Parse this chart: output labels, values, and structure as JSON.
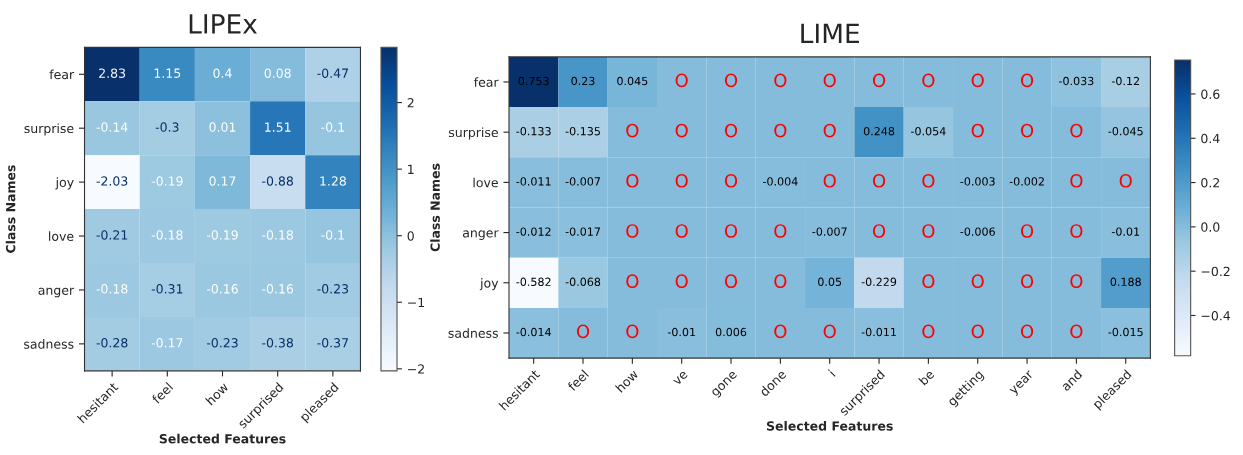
{
  "chart_data": [
    {
      "type": "heatmap",
      "title": "LIPEx",
      "xlabel": "Selected Features",
      "ylabel": "Class Names",
      "categories": [
        "hesitant",
        "feel",
        "how",
        "surprised",
        "pleased"
      ],
      "y_categories": [
        "fear",
        "surprise",
        "joy",
        "love",
        "anger",
        "sadness"
      ],
      "cells": [
        [
          2.83,
          1.15,
          0.4,
          0.08,
          -0.47
        ],
        [
          -0.14,
          -0.3,
          0.01,
          1.51,
          -0.1
        ],
        [
          -2.03,
          -0.19,
          0.17,
          -0.88,
          1.28
        ],
        [
          -0.21,
          -0.18,
          -0.19,
          -0.18,
          -0.1
        ],
        [
          -0.18,
          -0.31,
          -0.16,
          -0.16,
          -0.23
        ],
        [
          -0.28,
          -0.17,
          -0.23,
          -0.38,
          -0.37
        ]
      ],
      "data_labels": true,
      "clim": [
        -2.03,
        2.83
      ],
      "cticks": [
        {
          "value": -2,
          "label": "−2"
        },
        {
          "value": -1,
          "label": "−1"
        },
        {
          "value": 0,
          "label": "0"
        },
        {
          "value": 1,
          "label": "1"
        },
        {
          "value": 2,
          "label": "2"
        }
      ]
    },
    {
      "type": "heatmap",
      "title": "LIME",
      "xlabel": "Selected Features",
      "ylabel": "Class Names",
      "categories": [
        "hesitant",
        "feel",
        "how",
        "ve",
        "gone",
        "done",
        "i",
        "surprised",
        "be",
        "getting",
        "year",
        "and",
        "pleased"
      ],
      "y_categories": [
        "fear",
        "surprise",
        "love",
        "anger",
        "joy",
        "sadness"
      ],
      "cells": [
        [
          0.753,
          0.23,
          0.045,
          0,
          0,
          0,
          0,
          0,
          0,
          0,
          0,
          -0.033,
          -0.12
        ],
        [
          -0.133,
          -0.135,
          0,
          0,
          0,
          0,
          0,
          0.248,
          -0.054,
          0,
          0,
          0,
          -0.045
        ],
        [
          -0.011,
          -0.007,
          0,
          0,
          0,
          -0.004,
          0,
          0,
          0,
          -0.003,
          -0.002,
          0,
          0
        ],
        [
          -0.012,
          -0.017,
          0,
          0,
          0,
          0,
          -0.007,
          0,
          0,
          -0.006,
          0,
          0,
          -0.01
        ],
        [
          -0.582,
          -0.068,
          0,
          0,
          0,
          0,
          0.05,
          -0.229,
          0,
          0,
          0,
          0,
          0.188
        ],
        [
          -0.014,
          0,
          0,
          -0.01,
          0.006,
          0,
          0,
          -0.011,
          0,
          0,
          0,
          0,
          -0.015
        ]
      ],
      "cell_labels": [
        [
          "0.753",
          "0.23",
          "0.045",
          "O",
          "O",
          "O",
          "O",
          "O",
          "O",
          "O",
          "O",
          "-0.033",
          "-0.12"
        ],
        [
          "-0.133",
          "-0.135",
          "O",
          "O",
          "O",
          "O",
          "O",
          "0.248",
          "-0.054",
          "O",
          "O",
          "O",
          "-0.045"
        ],
        [
          "-0.011",
          "-0.007",
          "O",
          "O",
          "O",
          "-0.004",
          "O",
          "O",
          "O",
          "-0.003",
          "-0.002",
          "O",
          "O"
        ],
        [
          "-0.012",
          "-0.017",
          "O",
          "O",
          "O",
          "O",
          "-0.007",
          "O",
          "O",
          "-0.006",
          "O",
          "O",
          "-0.01"
        ],
        [
          "-0.582",
          "-0.068",
          "O",
          "O",
          "O",
          "O",
          "0.05",
          "-0.229",
          "O",
          "O",
          "O",
          "O",
          "0.188"
        ],
        [
          "-0.014",
          "O",
          "O",
          "-0.01",
          "0.006",
          "O",
          "O",
          "-0.011",
          "O",
          "O",
          "O",
          "O",
          "-0.015"
        ]
      ],
      "clim": [
        -0.582,
        0.753
      ],
      "cticks": [
        {
          "value": -0.4,
          "label": "−0.4"
        },
        {
          "value": -0.2,
          "label": "−0.2"
        },
        {
          "value": 0,
          "label": "0.0"
        },
        {
          "value": 0.2,
          "label": "0.2"
        },
        {
          "value": 0.4,
          "label": "0.4"
        },
        {
          "value": 0.6,
          "label": "0.6"
        }
      ]
    }
  ]
}
